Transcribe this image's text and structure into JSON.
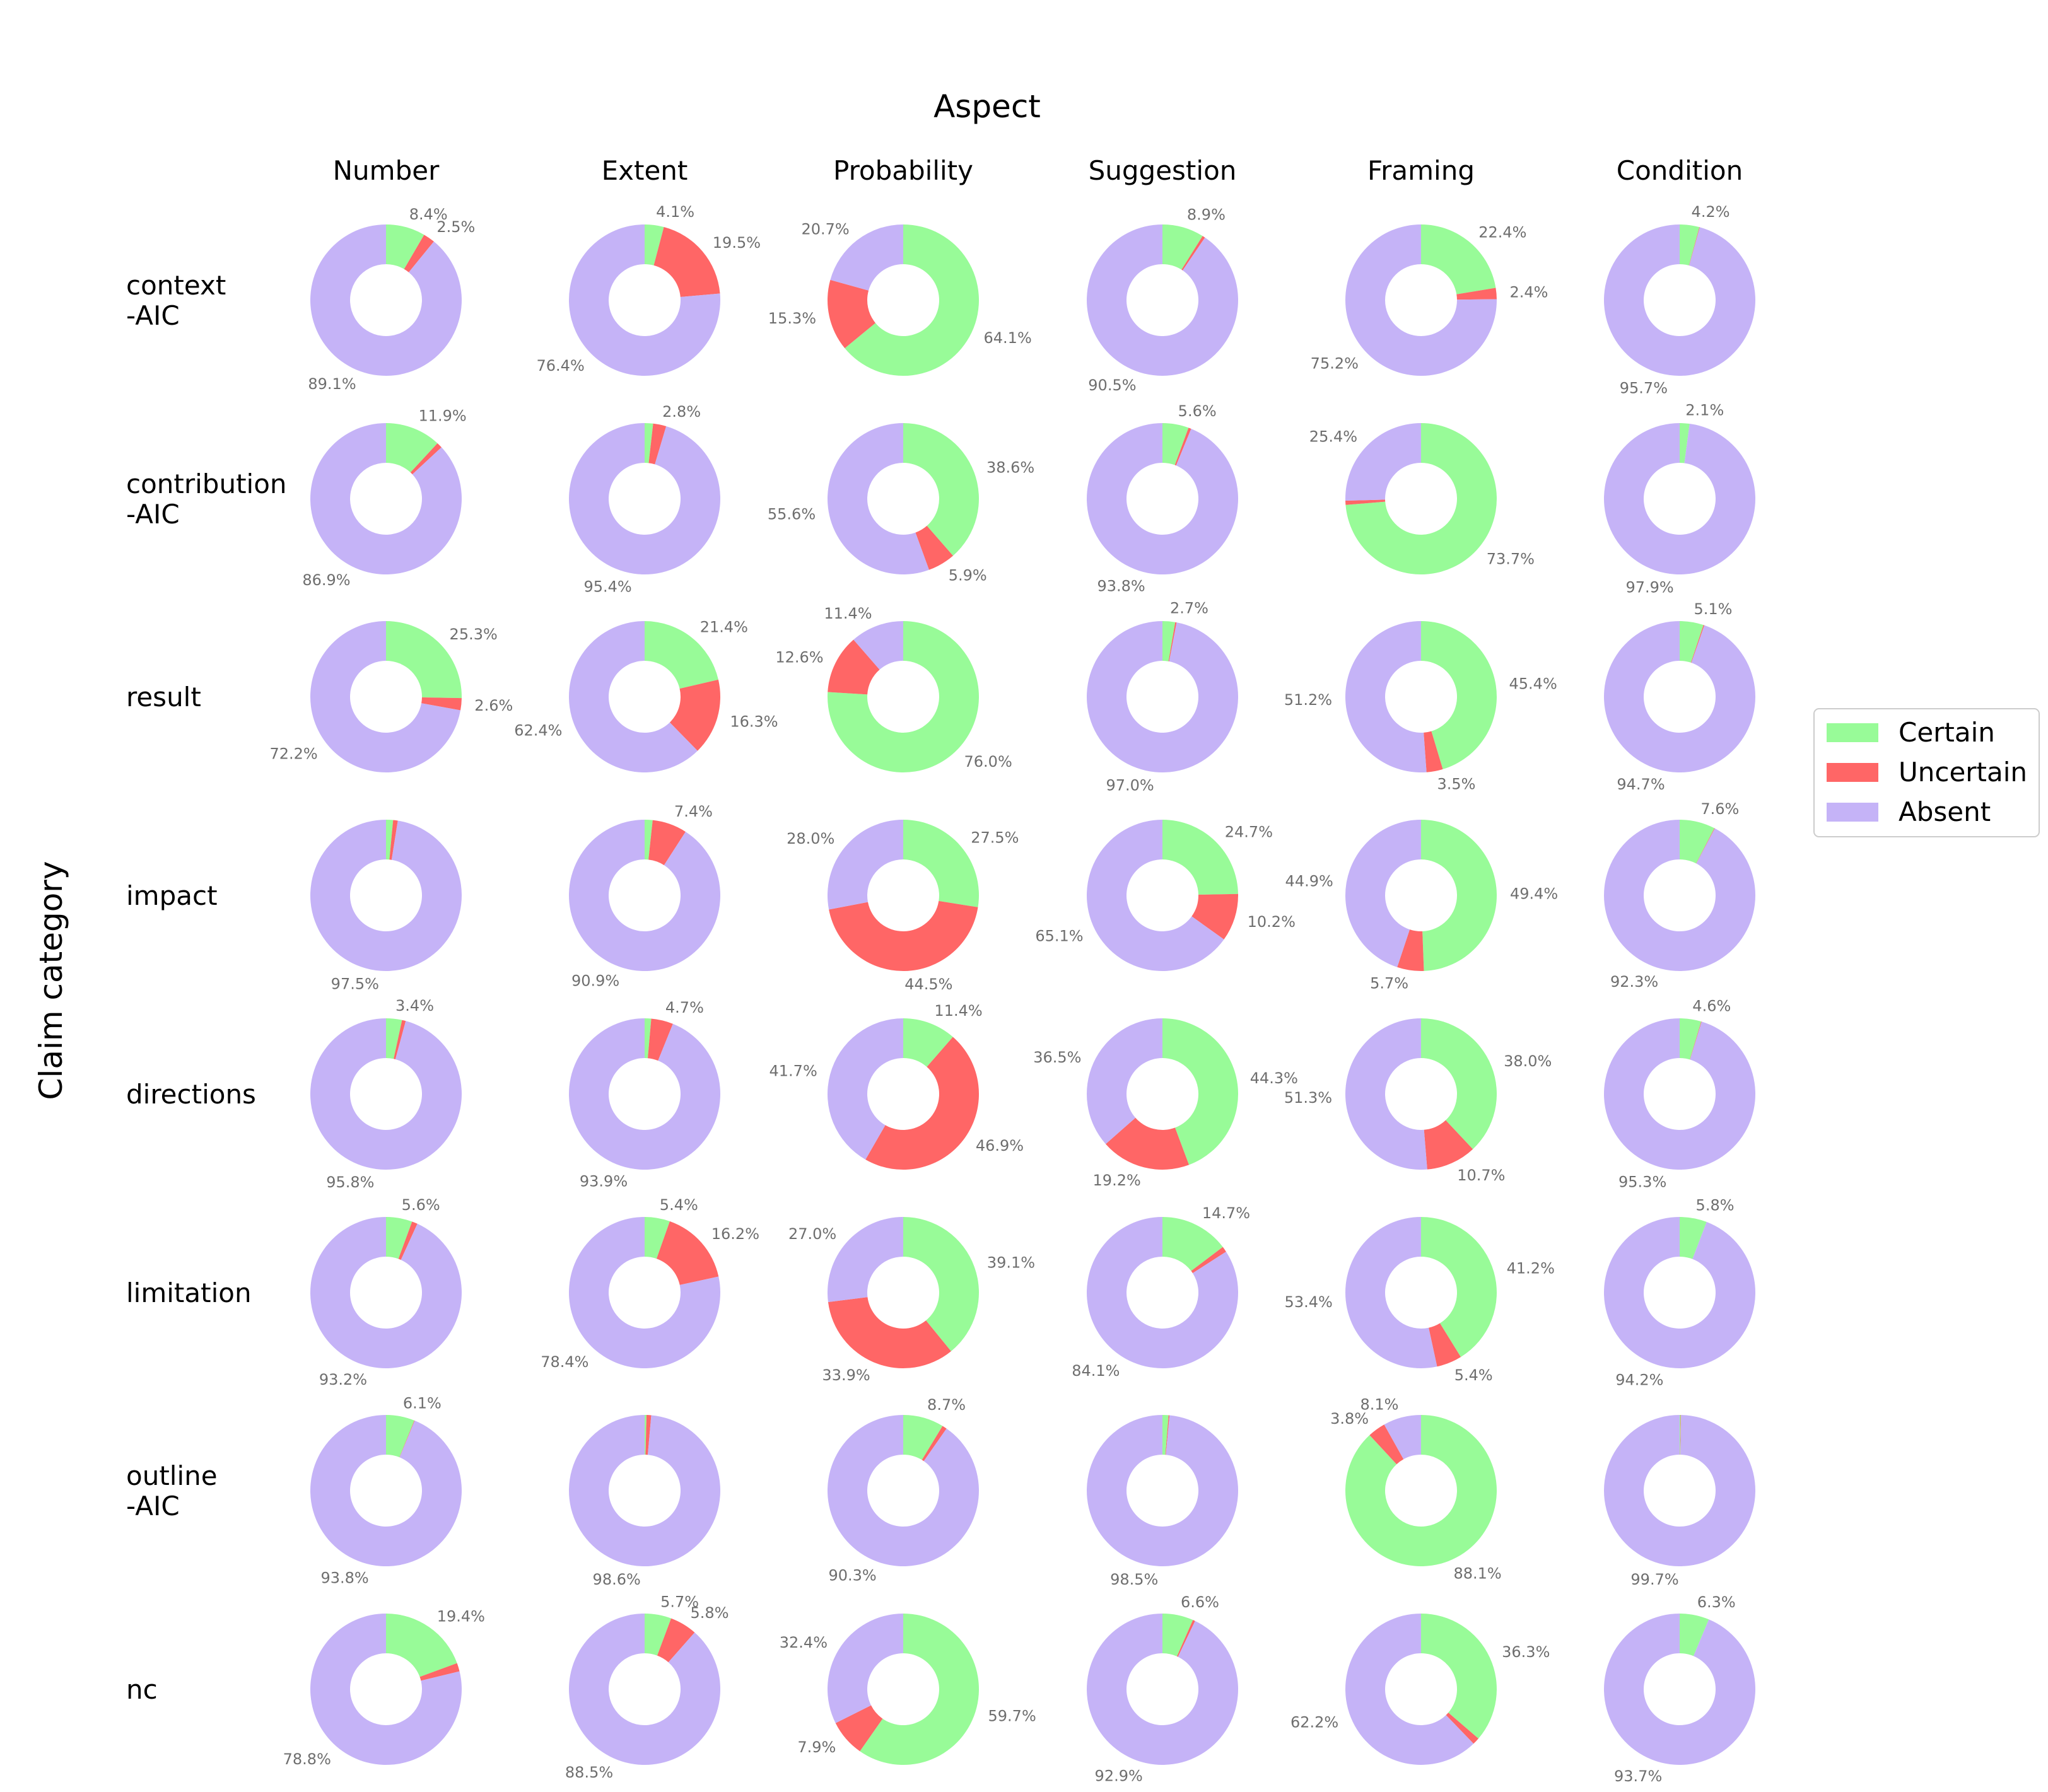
{
  "chart_data": {
    "type": "pie",
    "subtype": "donut-grid",
    "column_title": "Aspect",
    "row_title": "Claim category",
    "columns": [
      "Number",
      "Extent",
      "Probability",
      "Suggestion",
      "Framing",
      "Condition"
    ],
    "rows": [
      {
        "label": "context\n-AIC"
      },
      {
        "label": "contribution\n-AIC"
      },
      {
        "label": "result"
      },
      {
        "label": "impact"
      },
      {
        "label": "directions"
      },
      {
        "label": "limitation"
      },
      {
        "label": "outline\n-AIC"
      },
      {
        "label": "nc"
      }
    ],
    "series": [
      {
        "name": "Certain",
        "color": "#98FB98"
      },
      {
        "name": "Uncertain",
        "color": "#FF6666"
      },
      {
        "name": "Absent",
        "color": "#C5B3F7"
      }
    ],
    "legend_position": "right",
    "values": [
      [
        [
          8.4,
          2.5,
          89.1
        ],
        [
          4.1,
          19.5,
          76.4
        ],
        [
          64.1,
          15.3,
          20.7
        ],
        [
          8.9,
          0.6,
          90.5
        ],
        [
          22.4,
          2.4,
          75.2
        ],
        [
          4.2,
          0.1,
          95.7
        ]
      ],
      [
        [
          11.9,
          1.2,
          86.9
        ],
        [
          1.8,
          2.8,
          95.4
        ],
        [
          38.6,
          5.9,
          55.6
        ],
        [
          5.6,
          0.6,
          93.8
        ],
        [
          73.7,
          0.9,
          25.4
        ],
        [
          2.1,
          0.0,
          97.9
        ]
      ],
      [
        [
          25.3,
          2.6,
          72.2
        ],
        [
          21.4,
          16.3,
          62.4
        ],
        [
          76.0,
          12.6,
          11.4
        ],
        [
          2.7,
          0.3,
          97.0
        ],
        [
          45.4,
          3.5,
          51.2
        ],
        [
          5.1,
          0.2,
          94.7
        ]
      ],
      [
        [
          1.5,
          1.0,
          97.5
        ],
        [
          1.7,
          7.4,
          90.9
        ],
        [
          27.5,
          44.5,
          28.0
        ],
        [
          24.7,
          10.2,
          65.1
        ],
        [
          49.4,
          5.7,
          44.9
        ],
        [
          7.6,
          0.1,
          92.3
        ]
      ],
      [
        [
          3.4,
          0.8,
          95.8
        ],
        [
          1.4,
          4.7,
          93.9
        ],
        [
          11.4,
          46.9,
          41.7
        ],
        [
          44.3,
          19.2,
          36.5
        ],
        [
          38.0,
          10.7,
          51.3
        ],
        [
          4.6,
          0.1,
          95.3
        ]
      ],
      [
        [
          5.6,
          1.2,
          93.2
        ],
        [
          5.4,
          16.2,
          78.4
        ],
        [
          39.1,
          33.9,
          27.0
        ],
        [
          14.7,
          1.2,
          84.1
        ],
        [
          41.2,
          5.4,
          53.4
        ],
        [
          5.8,
          0.0,
          94.2
        ]
      ],
      [
        [
          6.1,
          0.1,
          93.8
        ],
        [
          0.4,
          1.0,
          98.6
        ],
        [
          8.7,
          1.0,
          90.3
        ],
        [
          1.3,
          0.2,
          98.5
        ],
        [
          88.1,
          3.8,
          8.1
        ],
        [
          0.2,
          0.1,
          99.7
        ]
      ],
      [
        [
          19.4,
          1.8,
          78.8
        ],
        [
          5.7,
          5.8,
          88.5
        ],
        [
          59.7,
          7.9,
          32.4
        ],
        [
          6.6,
          0.5,
          92.9
        ],
        [
          36.3,
          1.5,
          62.2
        ],
        [
          6.3,
          0.0,
          93.7
        ]
      ]
    ],
    "labels": [
      [
        [
          "8.4%",
          "2.5%",
          "89.1%"
        ],
        [
          "4.1%",
          "19.5%",
          "76.4%"
        ],
        [
          "64.1%",
          "15.3%",
          "20.7%"
        ],
        [
          "8.9%",
          "",
          "90.5%"
        ],
        [
          "22.4%",
          "2.4%",
          "75.2%"
        ],
        [
          "4.2%",
          "",
          "95.7%"
        ]
      ],
      [
        [
          "11.9%",
          "",
          "86.9%"
        ],
        [
          "",
          "2.8%",
          "95.4%"
        ],
        [
          "38.6%",
          "5.9%",
          "55.6%"
        ],
        [
          "5.6%",
          "",
          "93.8%"
        ],
        [
          "73.7%",
          "",
          "25.4%"
        ],
        [
          "2.1%",
          "",
          "97.9%"
        ]
      ],
      [
        [
          "25.3%",
          "2.6%",
          "72.2%"
        ],
        [
          "21.4%",
          "16.3%",
          "62.4%"
        ],
        [
          "76.0%",
          "12.6%",
          "11.4%"
        ],
        [
          "2.7%",
          "",
          "97.0%"
        ],
        [
          "45.4%",
          "3.5%",
          "51.2%"
        ],
        [
          "5.1%",
          "",
          "94.7%"
        ]
      ],
      [
        [
          "",
          "",
          "97.5%"
        ],
        [
          "",
          "7.4%",
          "90.9%"
        ],
        [
          "27.5%",
          "44.5%",
          "28.0%"
        ],
        [
          "24.7%",
          "10.2%",
          "65.1%"
        ],
        [
          "49.4%",
          "5.7%",
          "44.9%"
        ],
        [
          "7.6%",
          "",
          "92.3%"
        ]
      ],
      [
        [
          "3.4%",
          "",
          "95.8%"
        ],
        [
          "",
          "4.7%",
          "93.9%"
        ],
        [
          "11.4%",
          "46.9%",
          "41.7%"
        ],
        [
          "44.3%",
          "19.2%",
          "36.5%"
        ],
        [
          "38.0%",
          "10.7%",
          "51.3%"
        ],
        [
          "4.6%",
          "",
          "95.3%"
        ]
      ],
      [
        [
          "5.6%",
          "",
          "93.2%"
        ],
        [
          "5.4%",
          "16.2%",
          "78.4%"
        ],
        [
          "39.1%",
          "33.9%",
          "27.0%"
        ],
        [
          "14.7%",
          "",
          "84.1%"
        ],
        [
          "41.2%",
          "5.4%",
          "53.4%"
        ],
        [
          "5.8%",
          "",
          "94.2%"
        ]
      ],
      [
        [
          "6.1%",
          "",
          "93.8%"
        ],
        [
          "",
          "",
          "98.6%"
        ],
        [
          "8.7%",
          "",
          "90.3%"
        ],
        [
          "",
          "",
          "98.5%"
        ],
        [
          "88.1%",
          "3.8%",
          "8.1%"
        ],
        [
          "",
          "",
          "99.7%"
        ]
      ],
      [
        [
          "19.4%",
          "",
          "78.8%"
        ],
        [
          "5.7%",
          "5.8%",
          "88.5%"
        ],
        [
          "59.7%",
          "7.9%",
          "32.4%"
        ],
        [
          "6.6%",
          "",
          "92.9%"
        ],
        [
          "36.3%",
          "",
          "62.2%"
        ],
        [
          "6.3%",
          "",
          "93.7%"
        ]
      ]
    ]
  }
}
